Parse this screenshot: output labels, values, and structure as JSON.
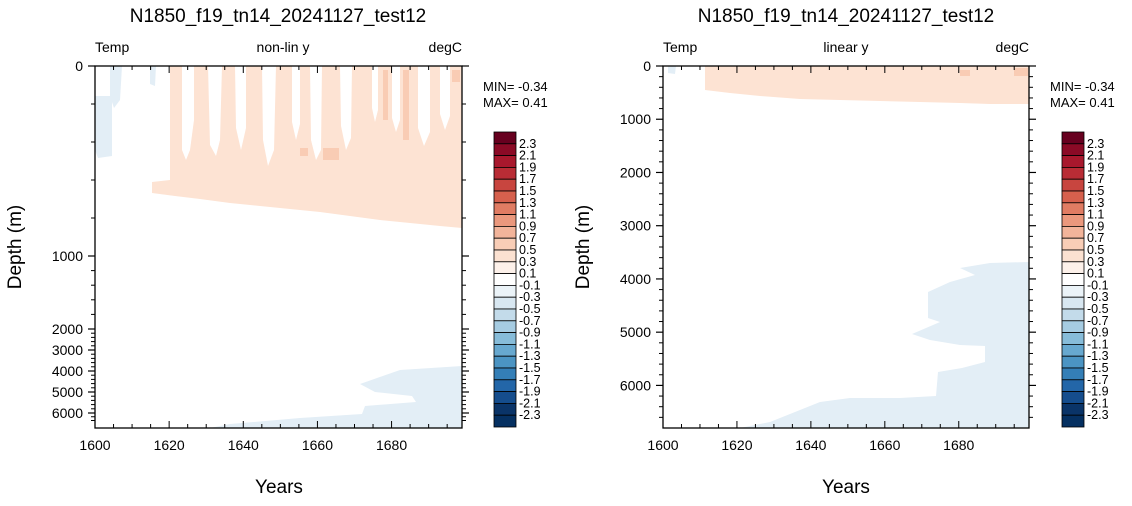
{
  "chart_data": [
    {
      "type": "heatmap",
      "title": "N1850_f19_tn14_20241127_test12",
      "subtitle_left": "Temp",
      "subtitle_center": "non-lin y",
      "subtitle_right": "degC",
      "xlabel": "Years",
      "ylabel": "Depth (m)",
      "x_ticks": [
        "1600",
        "1620",
        "1640",
        "1660",
        "1680"
      ],
      "y_ticks": [
        "0",
        "1000",
        "2000",
        "3000",
        "4000",
        "5000",
        "6000"
      ],
      "xlim": [
        1600,
        1699
      ],
      "ylim": [
        6800,
        0
      ],
      "y_scale": "non-linear",
      "min_label": "MIN= -0.34",
      "max_label": "MAX=  0.41"
    },
    {
      "type": "heatmap",
      "title": "N1850_f19_tn14_20241127_test12",
      "subtitle_left": "Temp",
      "subtitle_center": "linear y",
      "subtitle_right": "degC",
      "xlabel": "Years",
      "ylabel": "Depth (m)",
      "x_ticks": [
        "1600",
        "1620",
        "1640",
        "1660",
        "1680"
      ],
      "y_ticks": [
        "0",
        "1000",
        "2000",
        "3000",
        "4000",
        "5000",
        "6000"
      ],
      "xlim": [
        1600,
        1699
      ],
      "ylim": [
        6800,
        0
      ],
      "y_scale": "linear",
      "min_label": "MIN= -0.34",
      "max_label": "MAX=  0.41"
    }
  ],
  "colorbar": {
    "labels": [
      "2.3",
      "2.1",
      "1.9",
      "1.7",
      "1.5",
      "1.3",
      "1.1",
      "0.9",
      "0.7",
      "0.5",
      "0.3",
      "0.1",
      "-0.1",
      "-0.3",
      "-0.5",
      "-0.7",
      "-0.9",
      "-1.1",
      "-1.3",
      "-1.5",
      "-1.7",
      "-1.9",
      "-2.1",
      "-2.3"
    ],
    "colors": [
      "#67001f",
      "#8b0a26",
      "#a8182d",
      "#b92c35",
      "#c8453f",
      "#d6604d",
      "#e07c63",
      "#ea987d",
      "#f2b49a",
      "#f8cdb6",
      "#fbe1d1",
      "#fdf1ea",
      "#ffffff",
      "#ebf3f8",
      "#d8e7f1",
      "#c3dbea",
      "#a6cce2",
      "#87bcd9",
      "#67a8cf",
      "#4b94c3",
      "#347fb7",
      "#2366a8",
      "#154d8d",
      "#0a3468",
      "#053061"
    ]
  },
  "colors": {
    "warm_fill": "#fde1d1",
    "warm_strong": "#f9cdb5",
    "cool_fill": "#e3eef6"
  }
}
